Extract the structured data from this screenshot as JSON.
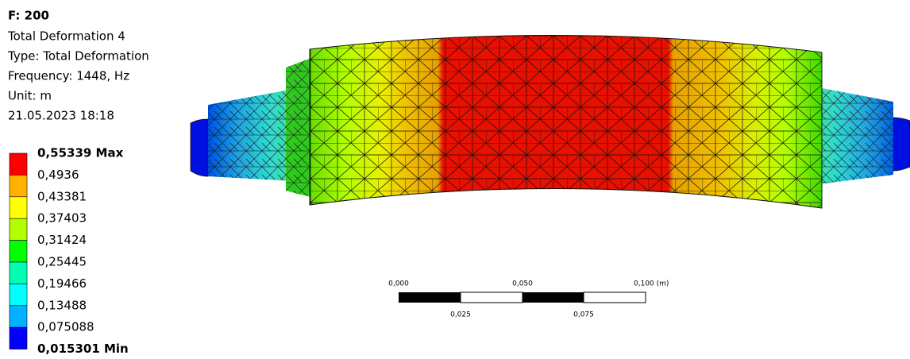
{
  "header": {
    "title": "F: 200",
    "lines": [
      "Total Deformation 4",
      "Type: Total Deformation",
      "Frequency: 1448, Hz",
      "Unit: m",
      "21.05.2023 18:18"
    ]
  },
  "legend": {
    "labels": [
      "0,55339 Max",
      "0,4936",
      "0,43381",
      "0,37403",
      "0,31424",
      "0,25445",
      "0,19466",
      "0,13488",
      "0,075088",
      "0,015301 Min"
    ]
  },
  "scale_bar": {
    "top_labels": [
      "0,000",
      "0,050",
      "0,100 (m)"
    ],
    "bottom_labels": [
      "0,025",
      "0,075"
    ]
  }
}
